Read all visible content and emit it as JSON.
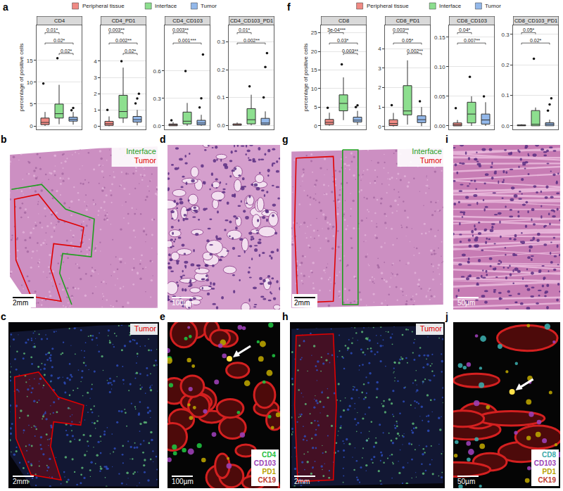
{
  "groups": [
    {
      "name": "Peripheral tissue",
      "color": "#f08a84"
    },
    {
      "name": "Interface",
      "color": "#8ddf8f"
    },
    {
      "name": "Tumor",
      "color": "#93b8ea"
    }
  ],
  "chart_data": [
    {
      "type": "box",
      "panel": "a",
      "title": "CD4",
      "ylabel": "percentage of positive cells",
      "grid": true,
      "tick_labels": "y",
      "ylim": [
        -0.8,
        23
      ],
      "yticks": [
        0,
        5,
        10,
        15
      ],
      "boxes": [
        {
          "q1": 0.3,
          "median": 0.8,
          "q3": 1.8,
          "lowerfence": 0,
          "upperfence": 3.2,
          "points": [
            9.7
          ]
        },
        {
          "q1": 1.8,
          "median": 2.8,
          "q3": 5.0,
          "lowerfence": 0.4,
          "upperfence": 9.4,
          "points": [
            15.5
          ]
        },
        {
          "q1": 1.1,
          "median": 1.5,
          "q3": 2.0,
          "lowerfence": 0.3,
          "upperfence": 3.2,
          "points": [
            3.6,
            4.1
          ]
        }
      ],
      "comparisons": [
        {
          "groups": [
            0,
            1
          ],
          "label": "0.01*"
        },
        {
          "groups": [
            0,
            2
          ],
          "label": "0.02*"
        },
        {
          "groups": [
            1,
            2
          ],
          "label": "0.02*"
        }
      ]
    },
    {
      "type": "box",
      "panel": "a",
      "title": "CD4_PD1",
      "grid": true,
      "tick_labels": "y",
      "ylim": [
        -0.2,
        6.2
      ],
      "yticks": [
        0,
        1,
        2,
        3,
        4
      ],
      "boxes": [
        {
          "q1": 0.05,
          "median": 0.15,
          "q3": 0.3,
          "lowerfence": 0,
          "upperfence": 0.6,
          "points": [
            1.0
          ]
        },
        {
          "q1": 0.5,
          "median": 0.9,
          "q3": 1.9,
          "lowerfence": 0.2,
          "upperfence": 3.6,
          "points": [
            4.0
          ]
        },
        {
          "q1": 0.25,
          "median": 0.4,
          "q3": 0.6,
          "lowerfence": 0.05,
          "upperfence": 1.0,
          "points": [
            1.4,
            1.7,
            2.0
          ]
        }
      ],
      "comparisons": [
        {
          "groups": [
            0,
            1
          ],
          "label": "0.003**"
        },
        {
          "groups": [
            0,
            2
          ],
          "label": "0.002**"
        },
        {
          "groups": [
            1,
            2
          ],
          "label": "0.02*"
        }
      ]
    },
    {
      "type": "box",
      "panel": "a",
      "title": "CD4_CD103",
      "grid": true,
      "tick_labels": "y",
      "ylim": [
        -0.04,
        1.1
      ],
      "yticks": [
        {
          "value": 0,
          "label": "0.0"
        },
        0.3,
        0.6
      ],
      "boxes": [
        {
          "q1": 0,
          "median": 0.01,
          "q3": 0.02,
          "lowerfence": 0,
          "upperfence": 0.04,
          "points": [
            0.06
          ]
        },
        {
          "q1": 0.02,
          "median": 0.05,
          "q3": 0.15,
          "lowerfence": 0,
          "upperfence": 0.25,
          "points": [
            0.6
          ]
        },
        {
          "q1": 0.01,
          "median": 0.03,
          "q3": 0.06,
          "lowerfence": 0,
          "upperfence": 0.12,
          "points": [
            0.2,
            0.3,
            0.78
          ]
        }
      ],
      "comparisons": [
        {
          "groups": [
            0,
            1
          ],
          "label": "0.003**"
        },
        {
          "groups": [
            0,
            2
          ],
          "label": "0.001***"
        }
      ]
    },
    {
      "type": "box",
      "panel": "a",
      "title": "CD4_CD103_PD1",
      "grid": true,
      "tick_labels": "y",
      "ylim": [
        -0.015,
        0.36
      ],
      "yticks": [
        {
          "value": 0,
          "label": "0.0"
        },
        0.1,
        0.2,
        0.3
      ],
      "boxes": [
        {
          "q1": 0,
          "median": 0.002,
          "q3": 0.005,
          "lowerfence": 0,
          "upperfence": 0.01,
          "points": []
        },
        {
          "q1": 0.005,
          "median": 0.02,
          "q3": 0.06,
          "lowerfence": 0,
          "upperfence": 0.11,
          "points": [
            0.14
          ]
        },
        {
          "q1": 0.002,
          "median": 0.008,
          "q3": 0.025,
          "lowerfence": 0,
          "upperfence": 0.05,
          "points": [
            0.1,
            0.21,
            0.26
          ]
        }
      ],
      "comparisons": [
        {
          "groups": [
            0,
            1
          ],
          "label": "0.01*"
        },
        {
          "groups": [
            0,
            2
          ],
          "label": "0.002**"
        }
      ]
    },
    {
      "type": "box",
      "panel": "f",
      "title": "CD8",
      "ylabel": "percentage of positive cells",
      "grid": true,
      "tick_labels": "y",
      "ylim": [
        -1,
        27
      ],
      "yticks": [
        0,
        5,
        10,
        15,
        20,
        25
      ],
      "boxes": [
        {
          "q1": 0.3,
          "median": 0.9,
          "q3": 1.7,
          "lowerfence": 0,
          "upperfence": 3.5,
          "points": [
            4.8
          ]
        },
        {
          "q1": 4.0,
          "median": 6.0,
          "q3": 8.3,
          "lowerfence": 1.5,
          "upperfence": 13.0,
          "points": [
            16.5
          ]
        },
        {
          "q1": 1.0,
          "median": 1.5,
          "q3": 2.3,
          "lowerfence": 0.2,
          "upperfence": 4.0,
          "points": [
            5.0,
            5.5
          ]
        }
      ],
      "comparisons": [
        {
          "groups": [
            0,
            1
          ],
          "label": "3e-04***"
        },
        {
          "groups": [
            0,
            2
          ],
          "label": "0.03*"
        },
        {
          "groups": [
            1,
            2
          ],
          "label": "0.003**"
        }
      ]
    },
    {
      "type": "box",
      "panel": "f",
      "title": "CD8_PD1",
      "grid": true,
      "tick_labels": "y",
      "ylim": [
        -0.15,
        5.2
      ],
      "yticks": [
        0,
        1,
        2,
        3,
        4
      ],
      "boxes": [
        {
          "q1": 0.05,
          "median": 0.15,
          "q3": 0.35,
          "lowerfence": 0,
          "upperfence": 0.7,
          "points": [
            1.1
          ]
        },
        {
          "q1": 0.6,
          "median": 0.8,
          "q3": 2.1,
          "lowerfence": 0.1,
          "upperfence": 3.4,
          "points": []
        },
        {
          "q1": 0.2,
          "median": 0.35,
          "q3": 0.55,
          "lowerfence": 0.02,
          "upperfence": 1.0,
          "points": [
            1.3
          ]
        }
      ],
      "comparisons": [
        {
          "groups": [
            0,
            1
          ],
          "label": "0.003**"
        },
        {
          "groups": [
            0,
            2
          ],
          "label": "0.05*"
        },
        {
          "groups": [
            1,
            2
          ],
          "label": "0.002**"
        }
      ]
    },
    {
      "type": "box",
      "panel": "f",
      "title": "CD8_CD103",
      "grid": true,
      "tick_labels": "y",
      "ylim": [
        -0.006,
        0.17
      ],
      "yticks": [
        {
          "value": 0,
          "label": "0.00"
        },
        0.05,
        {
          "value": 0.1,
          "label": "0.10"
        },
        0.15
      ],
      "boxes": [
        {
          "q1": 0,
          "median": 0.002,
          "q3": 0.005,
          "lowerfence": 0,
          "upperfence": 0.01,
          "points": [
            0.03
          ]
        },
        {
          "q1": 0.005,
          "median": 0.02,
          "q3": 0.04,
          "lowerfence": 0,
          "upperfence": 0.05,
          "points": [
            0.083
          ]
        },
        {
          "q1": 0.003,
          "median": 0.01,
          "q3": 0.02,
          "lowerfence": 0,
          "upperfence": 0.04,
          "points": [
            0.05
          ]
        }
      ],
      "comparisons": [
        {
          "groups": [
            0,
            1
          ],
          "label": "0.04*"
        },
        {
          "groups": [
            0,
            2
          ],
          "label": "0.007**"
        }
      ]
    },
    {
      "type": "box",
      "panel": "f",
      "title": "CD8_CD103_PD1",
      "grid": true,
      "tick_labels": "y",
      "ylim": [
        -0.012,
        0.33
      ],
      "yticks": [
        {
          "value": 0,
          "label": "0.0"
        },
        0.1,
        0.2,
        0.3
      ],
      "boxes": [
        {
          "q1": 0,
          "median": 0.001,
          "q3": 0.003,
          "lowerfence": 0,
          "upperfence": 0.005,
          "points": []
        },
        {
          "q1": 0,
          "median": 0.005,
          "q3": 0.05,
          "lowerfence": 0,
          "upperfence": 0.06,
          "points": [
            0.22
          ]
        },
        {
          "q1": 0,
          "median": 0.005,
          "q3": 0.01,
          "lowerfence": 0,
          "upperfence": 0.02,
          "points": [
            0.05,
            0.07,
            0.09
          ]
        }
      ],
      "comparisons": [
        {
          "groups": [
            0,
            1
          ],
          "label": "0.05*"
        },
        {
          "groups": [
            0,
            2
          ],
          "label": "0.02*"
        }
      ]
    }
  ],
  "image_panels": [
    {
      "letter": "b",
      "kind": "HE",
      "labels": [
        {
          "text": "Interface",
          "color": "#1f9e1f"
        },
        {
          "text": "Tumor",
          "color": "#e00000"
        }
      ],
      "scale_bar": "2mm"
    },
    {
      "letter": "d",
      "kind": "HE_zoom",
      "scale_bar": "100µm"
    },
    {
      "letter": "g",
      "kind": "HE",
      "labels": [
        {
          "text": "Interface",
          "color": "#1f9e1f"
        },
        {
          "text": "Tumor",
          "color": "#e00000"
        }
      ],
      "scale_bar": "2mm"
    },
    {
      "letter": "i",
      "kind": "HE_zoom",
      "scale_bar": "50µm"
    },
    {
      "letter": "c",
      "kind": "IF",
      "labels": [
        {
          "text": "Tumor",
          "color": "#e00000"
        }
      ],
      "scale_bar": "2mm"
    },
    {
      "letter": "e",
      "kind": "IF_zoom",
      "markers": [
        {
          "text": "CD4",
          "color": "#1fbf3f"
        },
        {
          "text": "CD103",
          "color": "#9b3fb5"
        },
        {
          "text": "PD1",
          "color": "#b8a200"
        },
        {
          "text": "CK19",
          "color": "#c0392b"
        }
      ],
      "scale_bar": "100µm"
    },
    {
      "letter": "h",
      "kind": "IF",
      "labels": [
        {
          "text": "Tumor",
          "color": "#e00000"
        }
      ],
      "scale_bar": "2mm"
    },
    {
      "letter": "j",
      "kind": "IF_zoom",
      "markers": [
        {
          "text": "CD8",
          "color": "#3aa9a9"
        },
        {
          "text": "CD103",
          "color": "#9b3fb5"
        },
        {
          "text": "PD1",
          "color": "#b8a200"
        },
        {
          "text": "CK19",
          "color": "#c0392b"
        }
      ],
      "scale_bar": "50µm"
    }
  ]
}
